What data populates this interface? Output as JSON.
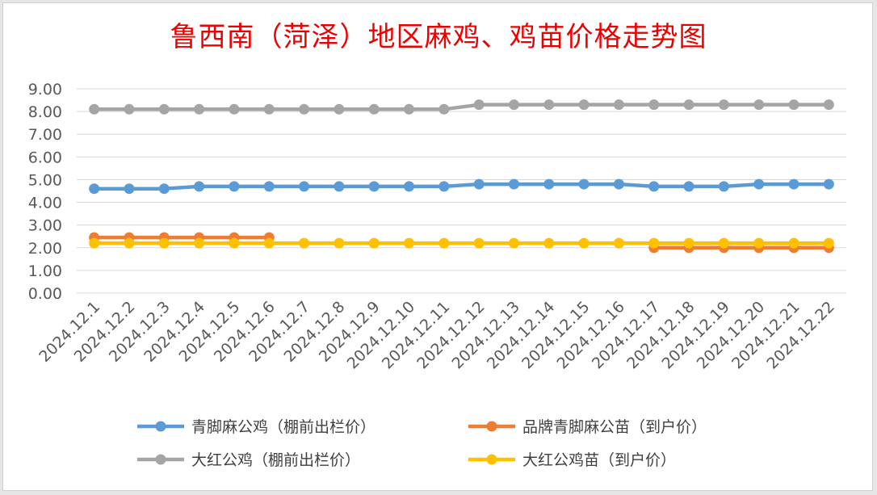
{
  "chart_data": {
    "type": "line",
    "title": "鲁西南（菏泽）地区麻鸡、鸡苗价格走势图",
    "xlabel": "",
    "ylabel": "",
    "ylim": [
      0,
      9
    ],
    "y_ticks": [
      "0.00",
      "1.00",
      "2.00",
      "3.00",
      "4.00",
      "5.00",
      "6.00",
      "7.00",
      "8.00",
      "9.00"
    ],
    "grid": true,
    "legend_position": "bottom",
    "categories": [
      "2024.12.1",
      "2024.12.2",
      "2024.12.3",
      "2024.12.4",
      "2024.12.5",
      "2024.12.6",
      "2024.12.7",
      "2024.12.8",
      "2024.12.9",
      "2024.12.10",
      "2024.12.11",
      "2024.12.12",
      "2024.12.13",
      "2024.12.14",
      "2024.12.15",
      "2024.12.16",
      "2024.12.17",
      "2024.12.18",
      "2024.12.19",
      "2024.12.20",
      "2024.12.21",
      "2024.12.22"
    ],
    "series": [
      {
        "name": "青脚麻公鸡（棚前出栏价）",
        "color": "#5b9bd5",
        "values": [
          4.6,
          4.6,
          4.6,
          4.7,
          4.7,
          4.7,
          4.7,
          4.7,
          4.7,
          4.7,
          4.7,
          4.8,
          4.8,
          4.8,
          4.8,
          4.8,
          4.7,
          4.7,
          4.7,
          4.8,
          4.8,
          4.8
        ]
      },
      {
        "name": "品牌青脚麻公苗（到户价）",
        "color": "#ed7d31",
        "values": [
          2.45,
          2.45,
          2.45,
          2.45,
          2.45,
          2.45,
          null,
          null,
          null,
          null,
          null,
          null,
          null,
          null,
          null,
          null,
          2.0,
          2.0,
          2.0,
          2.0,
          2.0,
          2.0
        ]
      },
      {
        "name": "大红公鸡（棚前出栏价）",
        "color": "#a5a5a5",
        "values": [
          8.1,
          8.1,
          8.1,
          8.1,
          8.1,
          8.1,
          8.1,
          8.1,
          8.1,
          8.1,
          8.1,
          8.3,
          8.3,
          8.3,
          8.3,
          8.3,
          8.3,
          8.3,
          8.3,
          8.3,
          8.3,
          8.3
        ]
      },
      {
        "name": "大红公鸡苗（到户价）",
        "color": "#ffc000",
        "values": [
          2.2,
          2.2,
          2.2,
          2.2,
          2.2,
          2.2,
          2.2,
          2.2,
          2.2,
          2.2,
          2.2,
          2.2,
          2.2,
          2.2,
          2.2,
          2.2,
          2.2,
          2.2,
          2.2,
          2.2,
          2.2,
          2.2
        ]
      }
    ]
  }
}
